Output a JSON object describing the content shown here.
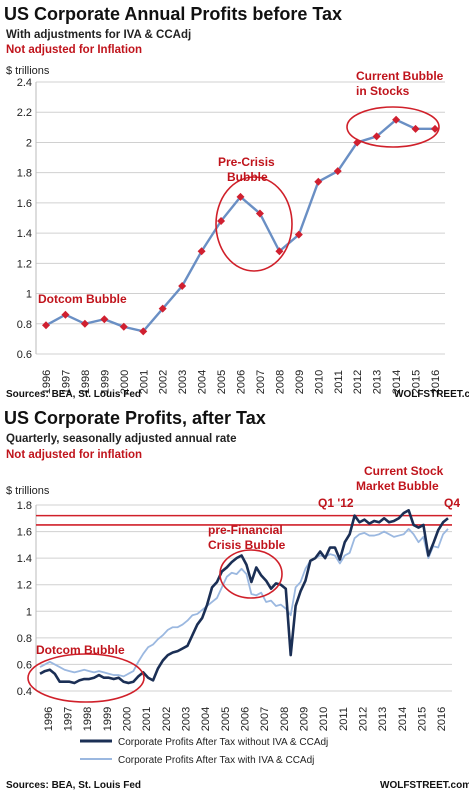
{
  "chart_data": [
    {
      "type": "line",
      "title": "US Corporate Annual Profits before Tax",
      "subtitle": "With adjustments for IVA & CCAdj",
      "note": "Not adjusted for Inflation",
      "ylabel": "$ trillions",
      "ylim": [
        0.6,
        2.4
      ],
      "yticks": [
        0.6,
        0.8,
        1,
        1.2,
        1.4,
        1.6,
        1.8,
        2,
        2.2,
        2.4
      ],
      "grid": true,
      "categories": [
        "1996",
        "1997",
        "1998",
        "1999",
        "2000",
        "2001",
        "2002",
        "2003",
        "2004",
        "2005",
        "2006",
        "2007",
        "2008",
        "2009",
        "2010",
        "2011",
        "2012",
        "2013",
        "2014",
        "2015",
        "2016"
      ],
      "series": [
        {
          "values": [
            0.79,
            0.86,
            0.8,
            0.83,
            0.78,
            0.75,
            0.9,
            1.05,
            1.28,
            1.48,
            1.64,
            1.53,
            1.28,
            1.39,
            1.74,
            1.81,
            2.0,
            2.04,
            2.15,
            2.09,
            2.09
          ],
          "color": "#6a8fc4",
          "marker_color": "#d02030"
        }
      ],
      "annotations": [
        {
          "text": "Dotcom Bubble"
        },
        {
          "text": "Pre-Crisis Bubble"
        },
        {
          "text": "Current Bubble in Stocks"
        }
      ],
      "source": "Sources: BEA, St. Louis Fed",
      "watermark": "WOLFSTREET.com"
    },
    {
      "type": "line",
      "title": "US Corporate Profits, after Tax",
      "subtitle": "Quarterly, seasonally adjusted annual rate",
      "note": "Not adjusted for inflation",
      "ylabel": "$ trillions",
      "ylim": [
        0.4,
        1.8
      ],
      "yticks": [
        0.4,
        0.6,
        0.8,
        1,
        1.2,
        1.4,
        1.6,
        1.8
      ],
      "grid": true,
      "x_start": 1996,
      "x_end": 2016.75,
      "categories": [
        "1996",
        "1997",
        "1998",
        "1999",
        "2000",
        "2001",
        "2002",
        "2003",
        "2004",
        "2005",
        "2006",
        "2007",
        "2008",
        "2009",
        "2010",
        "2011",
        "2012",
        "2013",
        "2014",
        "2015",
        "2016"
      ],
      "series": [
        {
          "name": "Corporate Profits After Tax without IVA & CCAdj",
          "color": "#1b2f55",
          "x": [
            1996,
            1996.25,
            1996.5,
            1996.75,
            1997,
            1997.25,
            1997.5,
            1997.75,
            1998,
            1998.25,
            1998.5,
            1998.75,
            1999,
            1999.25,
            1999.5,
            1999.75,
            2000,
            2000.25,
            2000.5,
            2000.75,
            2001,
            2001.25,
            2001.5,
            2001.75,
            2002,
            2002.25,
            2002.5,
            2002.75,
            2003,
            2003.25,
            2003.5,
            2003.75,
            2004,
            2004.25,
            2004.5,
            2004.75,
            2005,
            2005.25,
            2005.5,
            2005.75,
            2006,
            2006.25,
            2006.5,
            2006.75,
            2007,
            2007.25,
            2007.5,
            2007.75,
            2008,
            2008.25,
            2008.5,
            2008.75,
            2009,
            2009.25,
            2009.5,
            2009.75,
            2010,
            2010.25,
            2010.5,
            2010.75,
            2011,
            2011.25,
            2011.5,
            2011.75,
            2012,
            2012.25,
            2012.5,
            2012.75,
            2013,
            2013.25,
            2013.5,
            2013.75,
            2014,
            2014.25,
            2014.5,
            2014.75,
            2015,
            2015.25,
            2015.5,
            2015.75,
            2016,
            2016.25,
            2016.5,
            2016.75
          ],
          "values": [
            0.53,
            0.55,
            0.56,
            0.53,
            0.47,
            0.47,
            0.47,
            0.46,
            0.48,
            0.49,
            0.49,
            0.5,
            0.52,
            0.5,
            0.5,
            0.49,
            0.5,
            0.47,
            0.46,
            0.47,
            0.51,
            0.54,
            0.5,
            0.48,
            0.57,
            0.63,
            0.67,
            0.69,
            0.7,
            0.72,
            0.74,
            0.82,
            0.9,
            0.95,
            1.05,
            1.18,
            1.22,
            1.3,
            1.33,
            1.37,
            1.4,
            1.42,
            1.35,
            1.22,
            1.33,
            1.27,
            1.23,
            1.17,
            1.21,
            1.2,
            1.17,
            0.67,
            1.04,
            1.15,
            1.23,
            1.38,
            1.4,
            1.45,
            1.4,
            1.48,
            1.48,
            1.39,
            1.52,
            1.58,
            1.72,
            1.67,
            1.69,
            1.66,
            1.68,
            1.67,
            1.7,
            1.67,
            1.68,
            1.7,
            1.74,
            1.76,
            1.65,
            1.63,
            1.65,
            1.42,
            1.51,
            1.61,
            1.67,
            1.7
          ]
        },
        {
          "name": "Corporate Profits After Tax with IVA & CCAdj",
          "color": "#9bb8e0",
          "x": [
            1996,
            1996.25,
            1996.5,
            1996.75,
            1997,
            1997.25,
            1997.5,
            1997.75,
            1998,
            1998.25,
            1998.5,
            1998.75,
            1999,
            1999.25,
            1999.5,
            1999.75,
            2000,
            2000.25,
            2000.5,
            2000.75,
            2001,
            2001.25,
            2001.5,
            2001.75,
            2002,
            2002.25,
            2002.5,
            2002.75,
            2003,
            2003.25,
            2003.5,
            2003.75,
            2004,
            2004.25,
            2004.5,
            2004.75,
            2005,
            2005.25,
            2005.5,
            2005.75,
            2006,
            2006.25,
            2006.5,
            2006.75,
            2007,
            2007.25,
            2007.5,
            2007.75,
            2008,
            2008.25,
            2008.5,
            2008.75,
            2009,
            2009.25,
            2009.5,
            2009.75,
            2010,
            2010.25,
            2010.5,
            2010.75,
            2011,
            2011.25,
            2011.5,
            2011.75,
            2012,
            2012.25,
            2012.5,
            2012.75,
            2013,
            2013.25,
            2013.5,
            2013.75,
            2014,
            2014.25,
            2014.5,
            2014.75,
            2015,
            2015.25,
            2015.5,
            2015.75,
            2016,
            2016.25,
            2016.5,
            2016.75
          ],
          "values": [
            0.58,
            0.6,
            0.62,
            0.6,
            0.58,
            0.56,
            0.55,
            0.54,
            0.55,
            0.56,
            0.55,
            0.54,
            0.55,
            0.54,
            0.53,
            0.52,
            0.52,
            0.51,
            0.53,
            0.55,
            0.62,
            0.68,
            0.73,
            0.75,
            0.79,
            0.82,
            0.86,
            0.88,
            0.88,
            0.9,
            0.93,
            0.97,
            0.98,
            1.01,
            1.04,
            1.07,
            1.1,
            1.18,
            1.26,
            1.29,
            1.28,
            1.32,
            1.28,
            1.13,
            1.12,
            1.14,
            1.07,
            1.08,
            1.04,
            1.05,
            1.02,
            0.97,
            1.18,
            1.22,
            1.32,
            1.38,
            1.4,
            1.42,
            1.41,
            1.43,
            1.42,
            1.36,
            1.42,
            1.44,
            1.55,
            1.58,
            1.59,
            1.57,
            1.57,
            1.58,
            1.6,
            1.58,
            1.56,
            1.57,
            1.58,
            1.62,
            1.58,
            1.52,
            1.56,
            1.4,
            1.49,
            1.48,
            1.58,
            1.62
          ]
        }
      ],
      "reference_lines": [
        1.72,
        1.65
      ],
      "annotations": [
        {
          "text": "Dotcom Bubble"
        },
        {
          "text": "pre-Financial Crisis Bubble"
        },
        {
          "text": "Current Stock Market Bubble"
        },
        {
          "text": "Q1 '12"
        },
        {
          "text": "Q4"
        }
      ],
      "source": "Sources: BEA, St. Louis Fed",
      "watermark": "WOLFSTREET.com"
    }
  ],
  "colors": {
    "accent_red": "#c0141c",
    "circle_red": "#d0202a"
  }
}
